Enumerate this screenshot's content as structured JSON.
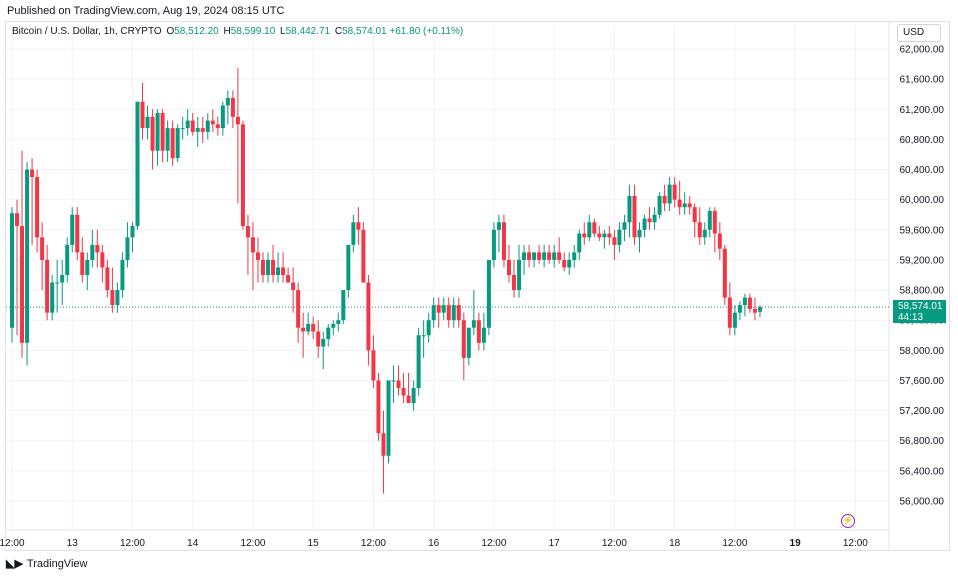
{
  "published": "Published on TradingView.com, Aug 19, 2024 08:15 UTC",
  "legend": {
    "symbol": "Bitcoin / U.S. Dollar, 1h, CRYPTO",
    "o_label": "O",
    "o": "58,512.20",
    "h_label": "H",
    "h": "58,599.10",
    "l_label": "L",
    "l": "58,442.71",
    "c_label": "C",
    "c": "58,574.01",
    "change": "+61.80 (+0.11%)"
  },
  "currency": "USD",
  "last_price": {
    "price": "58,574.01",
    "countdown": "44:13"
  },
  "footer": {
    "brand": "TradingView",
    "logo": "tv-logo-icon"
  },
  "colors": {
    "up": "#089981",
    "down": "#f23645",
    "grid": "#f0f3fa",
    "axis_text": "#131722"
  },
  "chart_data": {
    "type": "candlestick",
    "title": "Bitcoin / U.S. Dollar, 1h, CRYPTO",
    "ylim": [
      55800,
      62300
    ],
    "y_ticks": [
      "56,000.00",
      "56,400.00",
      "56,800.00",
      "57,200.00",
      "57,600.00",
      "58,000.00",
      "58,400.00",
      "58,800.00",
      "59,200.00",
      "59,600.00",
      "60,000.00",
      "60,400.00",
      "60,800.00",
      "61,200.00",
      "61,600.00",
      "62,000.00"
    ],
    "x_ticks": [
      {
        "label": "12:00",
        "i": 0
      },
      {
        "label": "13",
        "i": 12
      },
      {
        "label": "12:00",
        "i": 24
      },
      {
        "label": "14",
        "i": 36
      },
      {
        "label": "12:00",
        "i": 48
      },
      {
        "label": "15",
        "i": 60
      },
      {
        "label": "12:00",
        "i": 72
      },
      {
        "label": "16",
        "i": 84
      },
      {
        "label": "12:00",
        "i": 96
      },
      {
        "label": "17",
        "i": 108
      },
      {
        "label": "12:00",
        "i": 120
      },
      {
        "label": "18",
        "i": 132
      },
      {
        "label": "12:00",
        "i": 144
      },
      {
        "label": "19",
        "i": 156
      },
      {
        "label": "12:00",
        "i": 168
      }
    ],
    "ohlc": [
      [
        58300,
        59900,
        58100,
        59820
      ],
      [
        59820,
        60000,
        58200,
        59650
      ],
      [
        59650,
        60650,
        57900,
        58100
      ],
      [
        58100,
        60500,
        57800,
        60400
      ],
      [
        60400,
        60550,
        59400,
        60300
      ],
      [
        60300,
        60400,
        59300,
        59500
      ],
      [
        59500,
        59700,
        58800,
        59200
      ],
      [
        59200,
        59400,
        58400,
        58500
      ],
      [
        58500,
        59000,
        58400,
        58900
      ],
      [
        58900,
        59200,
        58500,
        58900
      ],
      [
        58900,
        59200,
        58600,
        59000
      ],
      [
        59000,
        59500,
        58900,
        59400
      ],
      [
        59400,
        59900,
        59300,
        59800
      ],
      [
        59800,
        59900,
        59200,
        59300
      ],
      [
        59300,
        59500,
        58900,
        59000
      ],
      [
        59000,
        59300,
        58800,
        59200
      ],
      [
        59200,
        59600,
        59100,
        59400
      ],
      [
        59400,
        59600,
        59100,
        59300
      ],
      [
        59300,
        59400,
        58900,
        59100
      ],
      [
        59100,
        59200,
        58700,
        58800
      ],
      [
        58800,
        59100,
        58500,
        58600
      ],
      [
        58600,
        58900,
        58500,
        58800
      ],
      [
        58800,
        59300,
        58700,
        59200
      ],
      [
        59200,
        59700,
        59100,
        59500
      ],
      [
        59500,
        59700,
        59300,
        59650
      ],
      [
        59650,
        61300,
        59600,
        61300
      ],
      [
        61300,
        61550,
        60800,
        60950
      ],
      [
        60950,
        61250,
        60800,
        61100
      ],
      [
        61100,
        61200,
        60400,
        60650
      ],
      [
        60650,
        61200,
        60450,
        61150
      ],
      [
        61150,
        61200,
        60500,
        60650
      ],
      [
        60650,
        61050,
        60500,
        60950
      ],
      [
        60950,
        61050,
        60450,
        60550
      ],
      [
        60550,
        61000,
        60500,
        60950
      ],
      [
        60950,
        61100,
        60800,
        60950
      ],
      [
        60950,
        61200,
        60850,
        61050
      ],
      [
        61050,
        61150,
        60850,
        60900
      ],
      [
        60900,
        61100,
        60700,
        60950
      ],
      [
        60950,
        61100,
        60750,
        60900
      ],
      [
        60900,
        61150,
        60800,
        61050
      ],
      [
        61050,
        61200,
        60900,
        61000
      ],
      [
        61000,
        61100,
        60850,
        60950
      ],
      [
        60950,
        61300,
        60850,
        61250
      ],
      [
        61250,
        61450,
        61000,
        61350
      ],
      [
        61350,
        61450,
        60950,
        61100
      ],
      [
        61100,
        61750,
        59950,
        61000
      ],
      [
        61000,
        61050,
        59600,
        59650
      ],
      [
        59650,
        59800,
        59000,
        59500
      ],
      [
        59500,
        59700,
        58800,
        59300
      ],
      [
        59300,
        59500,
        58900,
        59200
      ],
      [
        59200,
        59300,
        58900,
        59000
      ],
      [
        59000,
        59300,
        58900,
        59200
      ],
      [
        59200,
        59400,
        58900,
        59000
      ],
      [
        59000,
        59300,
        58900,
        59100
      ],
      [
        59100,
        59300,
        58900,
        59000
      ],
      [
        59000,
        59100,
        58900,
        58900
      ],
      [
        58900,
        59100,
        58500,
        58800
      ],
      [
        58800,
        58900,
        58100,
        58300
      ],
      [
        58300,
        58500,
        57900,
        58250
      ],
      [
        58250,
        58500,
        58200,
        58350
      ],
      [
        58350,
        58450,
        58150,
        58250
      ],
      [
        58250,
        58400,
        57900,
        58050
      ],
      [
        58050,
        58250,
        57750,
        58150
      ],
      [
        58150,
        58350,
        58050,
        58300
      ],
      [
        58300,
        58400,
        58200,
        58350
      ],
      [
        58350,
        58500,
        58250,
        58400
      ],
      [
        58400,
        58800,
        58350,
        58800
      ],
      [
        58800,
        59400,
        58700,
        59400
      ],
      [
        59400,
        59800,
        59300,
        59700
      ],
      [
        59700,
        59900,
        59400,
        59600
      ],
      [
        59600,
        59700,
        58900,
        58900
      ],
      [
        58900,
        59000,
        57800,
        58000
      ],
      [
        58000,
        58200,
        57500,
        57600
      ],
      [
        57600,
        57700,
        56800,
        56900
      ],
      [
        56900,
        57200,
        56100,
        56600
      ],
      [
        56600,
        57600,
        56500,
        57600
      ],
      [
        57600,
        57800,
        57300,
        57600
      ],
      [
        57600,
        57800,
        57400,
        57500
      ],
      [
        57500,
        57700,
        57300,
        57400
      ],
      [
        57400,
        57700,
        57300,
        57300
      ],
      [
        57300,
        57600,
        57200,
        57500
      ],
      [
        57500,
        58300,
        57400,
        58200
      ],
      [
        58200,
        58400,
        57900,
        58200
      ],
      [
        58200,
        58500,
        58100,
        58400
      ],
      [
        58400,
        58700,
        58300,
        58600
      ],
      [
        58600,
        58700,
        58300,
        58500
      ],
      [
        58500,
        58700,
        58400,
        58600
      ],
      [
        58600,
        58700,
        58300,
        58400
      ],
      [
        58400,
        58700,
        58300,
        58600
      ],
      [
        58600,
        58700,
        58300,
        58400
      ],
      [
        58400,
        58500,
        57600,
        57900
      ],
      [
        57900,
        58300,
        57800,
        58300
      ],
      [
        58300,
        58800,
        58200,
        58400
      ],
      [
        58400,
        58500,
        58000,
        58100
      ],
      [
        58100,
        58500,
        58000,
        58300
      ],
      [
        58300,
        59200,
        58200,
        59200
      ],
      [
        59200,
        59700,
        59100,
        59600
      ],
      [
        59600,
        59800,
        59300,
        59700
      ],
      [
        59700,
        59800,
        59100,
        59200
      ],
      [
        59200,
        59400,
        58900,
        59000
      ],
      [
        59000,
        59200,
        58700,
        58800
      ],
      [
        58800,
        59400,
        58700,
        59200
      ],
      [
        59200,
        59400,
        59000,
        59300
      ],
      [
        59300,
        59400,
        59100,
        59200
      ],
      [
        59200,
        59300,
        59100,
        59300
      ],
      [
        59300,
        59400,
        59150,
        59200
      ],
      [
        59200,
        59400,
        59100,
        59300
      ],
      [
        59300,
        59400,
        59150,
        59200
      ],
      [
        59200,
        59400,
        59100,
        59300
      ],
      [
        59300,
        59500,
        59150,
        59200
      ],
      [
        59200,
        59300,
        59050,
        59100
      ],
      [
        59100,
        59300,
        59000,
        59200
      ],
      [
        59200,
        59400,
        59100,
        59300
      ],
      [
        59300,
        59600,
        59200,
        59550
      ],
      [
        59550,
        59700,
        59400,
        59500
      ],
      [
        59500,
        59800,
        59450,
        59700
      ],
      [
        59700,
        59750,
        59500,
        59550
      ],
      [
        59550,
        59650,
        59450,
        59500
      ],
      [
        59500,
        59600,
        59350,
        59550
      ],
      [
        59550,
        59650,
        59400,
        59500
      ],
      [
        59500,
        59600,
        59200,
        59400
      ],
      [
        59400,
        59700,
        59300,
        59600
      ],
      [
        59600,
        59800,
        59450,
        59700
      ],
      [
        59700,
        60200,
        59500,
        60050
      ],
      [
        60050,
        60200,
        59400,
        59500
      ],
      [
        59500,
        59700,
        59300,
        59600
      ],
      [
        59600,
        59800,
        59500,
        59750
      ],
      [
        59750,
        59900,
        59600,
        59700
      ],
      [
        59700,
        59900,
        59600,
        59800
      ],
      [
        59800,
        60100,
        59750,
        60050
      ],
      [
        60050,
        60200,
        59850,
        59950
      ],
      [
        59950,
        60300,
        59850,
        60200
      ],
      [
        60200,
        60300,
        59900,
        60000
      ],
      [
        60000,
        60250,
        59800,
        59900
      ],
      [
        59900,
        60100,
        59800,
        59950
      ],
      [
        59950,
        60050,
        59800,
        59900
      ],
      [
        59900,
        59950,
        59500,
        59700
      ],
      [
        59700,
        59900,
        59400,
        59500
      ],
      [
        59500,
        59700,
        59400,
        59600
      ],
      [
        59600,
        59900,
        59500,
        59850
      ],
      [
        59850,
        59900,
        59300,
        59550
      ],
      [
        59550,
        59700,
        59200,
        59350
      ],
      [
        59350,
        59400,
        58600,
        58700
      ],
      [
        58700,
        58900,
        58200,
        58300
      ],
      [
        58300,
        58600,
        58200,
        58500
      ],
      [
        58500,
        58650,
        58400,
        58600
      ],
      [
        58600,
        58750,
        58450,
        58700
      ],
      [
        58700,
        58750,
        58500,
        58550
      ],
      [
        58550,
        58700,
        58400,
        58500
      ],
      [
        58512.2,
        58599.1,
        58442.71,
        58574.01
      ]
    ]
  }
}
